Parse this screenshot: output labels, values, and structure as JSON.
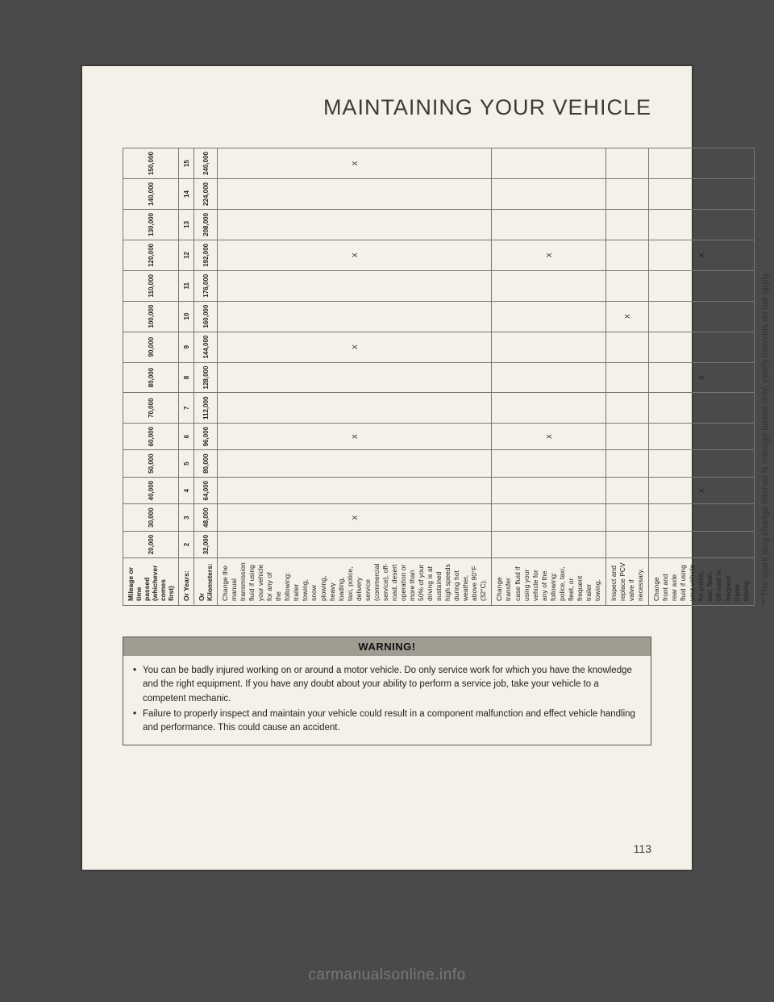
{
  "heading": "MAINTAINING YOUR VEHICLE",
  "table": {
    "header_label": "Mileage or time passed (whichever comes first)",
    "years_label": "Or Years:",
    "km_label": "Or Kilometers:",
    "miles": [
      "20,000",
      "30,000",
      "40,000",
      "50,000",
      "60,000",
      "70,000",
      "80,000",
      "90,000",
      "100,000",
      "110,000",
      "120,000",
      "130,000",
      "140,000",
      "150,000"
    ],
    "years": [
      "2",
      "3",
      "4",
      "5",
      "6",
      "7",
      "8",
      "9",
      "10",
      "11",
      "12",
      "13",
      "14",
      "15"
    ],
    "km": [
      "32,000",
      "48,000",
      "64,000",
      "80,000",
      "96,000",
      "112,000",
      "128,000",
      "144,000",
      "160,000",
      "176,000",
      "192,000",
      "208,000",
      "224,000",
      "240,000"
    ],
    "rows": [
      {
        "desc": "Change the manual transmission fluid if using your vehicle for any of the following: trailer towing, snow plowing, heavy loading, taxi, police, delivery service (commercial service), off-road, desert operation or more than 50% of your driving is at sustained high speeds during hot weather, above 90°F (32°C).",
        "cells": [
          "",
          "X",
          "",
          "",
          "X",
          "",
          "",
          "X",
          "",
          "",
          "X",
          "",
          "",
          "X"
        ]
      },
      {
        "desc": "Change transfer case fluid if using your vehicle for any of the following: police, taxi, fleet, or frequent trailer towing.",
        "cells": [
          "",
          "",
          "",
          "",
          "X",
          "",
          "",
          "",
          "",
          "",
          "X",
          "",
          "",
          ""
        ]
      },
      {
        "desc": "Inspect and replace PCV valve if necessary.",
        "cells": [
          "",
          "",
          "",
          "",
          "",
          "",
          "",
          "",
          "X",
          "",
          "",
          "",
          "",
          ""
        ]
      },
      {
        "desc": "Change front and rear axle fluid if using your vehicle for police, taxi, fleet, off-road or frequent trailer towing.",
        "cells": [
          "",
          "",
          "X",
          "",
          "",
          "",
          "X",
          "",
          "",
          "",
          "X",
          "",
          "",
          ""
        ]
      }
    ]
  },
  "footnote": "** The spark plug change interval is mileage based only, yearly intervals do not apply.",
  "warning": {
    "title": "WARNING!",
    "items": [
      "You can be badly injured working on or around a motor vehicle. Do only service work for which you have the knowledge and the right equipment. If you have any doubt about your ability to perform a service job, take your vehicle to a competent mechanic.",
      "Failure to properly inspect and maintain your vehicle could result in a component malfunction and effect vehicle handling and performance. This could cause an accident."
    ]
  },
  "page_number": "113",
  "watermark": "carmanualsonline.info"
}
